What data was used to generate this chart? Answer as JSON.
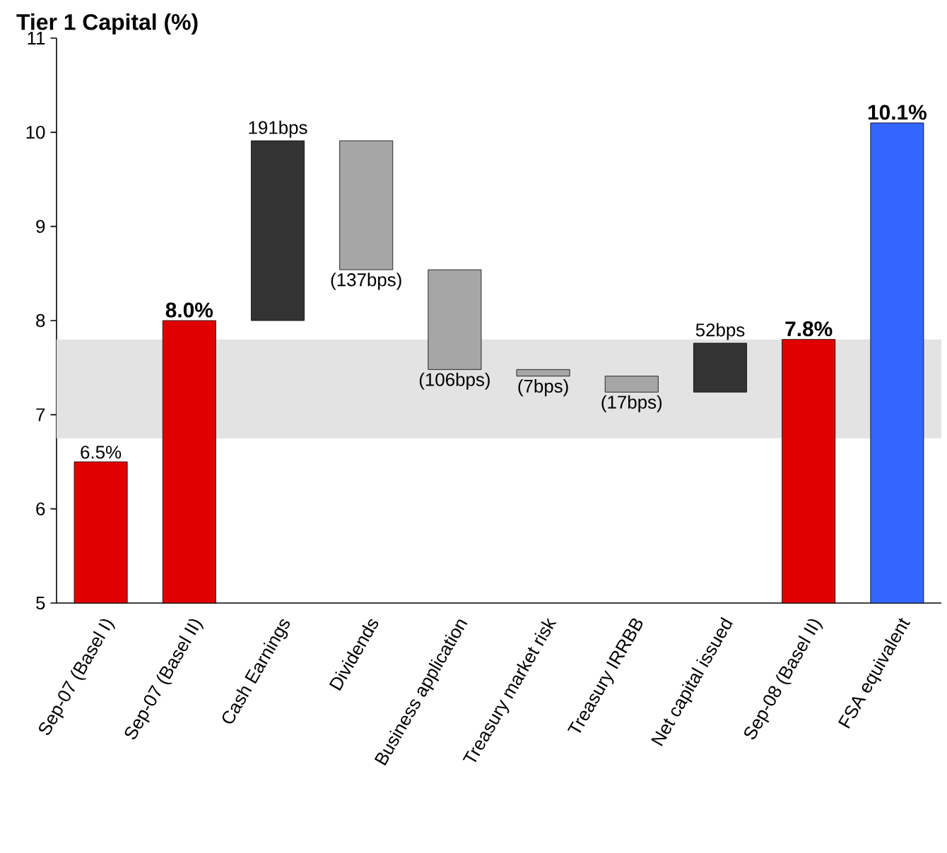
{
  "chart_data": {
    "type": "bar",
    "title": "Tier 1 Capital (%)",
    "categories": [
      "Sep-07 (Basel I)",
      "Sep-07 (Basel II)",
      "Cash Earnings",
      "Dividends",
      "Business application",
      "Treasury market risk",
      "Treasury IRRBB",
      "Net capital issued",
      "Sep-08 (Basel II)",
      "FSA equivalent"
    ],
    "values": [
      6.5,
      8.0,
      1.91,
      -1.37,
      -1.06,
      -0.07,
      -0.17,
      0.52,
      7.8,
      10.1
    ],
    "base": [
      null,
      null,
      8.0,
      9.91,
      8.54,
      7.48,
      7.41,
      7.24,
      null,
      null
    ],
    "colors": [
      "#e00000",
      "#e00000",
      "#333333",
      "#a6a6a6",
      "#a6a6a6",
      "#a6a6a6",
      "#a6a6a6",
      "#333333",
      "#e00000",
      "#3366ff"
    ],
    "value_labels": [
      "6.5%",
      "8.0%",
      null,
      null,
      null,
      null,
      null,
      null,
      "7.8%",
      "10.1%"
    ],
    "annotations": [
      {
        "text": "191bps",
        "x": "Cash Earnings",
        "y": 9.91
      },
      {
        "text": "(137bps)",
        "x": "Dividends",
        "y": 8.54
      },
      {
        "text": "(106bps)",
        "x": "Business application",
        "y": 7.48
      },
      {
        "text": "(7bps)",
        "x": "Treasury market risk",
        "y": 7.41
      },
      {
        "text": "(17bps)",
        "x": "Treasury IRRBB",
        "y": 7.24
      },
      {
        "text": "52bps",
        "x": "Net capital issued",
        "y": 7.76
      }
    ],
    "bands": [
      {
        "axis": "y",
        "from": 6.75,
        "to": 7.8,
        "color": "#e3e3e3"
      }
    ],
    "ylim": [
      5,
      11
    ],
    "yticks": [
      5,
      6,
      7,
      8,
      9,
      10,
      11
    ]
  }
}
